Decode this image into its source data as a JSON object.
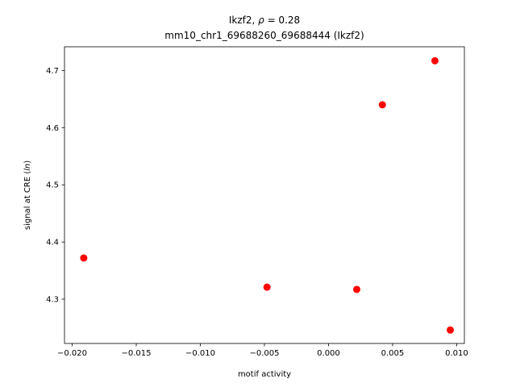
{
  "chart_data": {
    "type": "scatter",
    "title_line1_prefix": "Ikzf2, ",
    "title_line1_rho": "ρ",
    "title_line1_suffix": " = 0.28",
    "title_line2": "mm10_chr1_69688260_69688444 (Ikzf2)",
    "xlabel": "motif activity",
    "ylabel_prefix": "signal at CRE (",
    "ylabel_italic": "ln",
    "ylabel_suffix": ")",
    "xlim": [
      -0.0206,
      0.0106
    ],
    "ylim": [
      4.2225,
      4.7415
    ],
    "xticks": [
      -0.02,
      -0.015,
      -0.01,
      -0.005,
      0.0,
      0.005,
      0.01
    ],
    "xtick_labels": [
      "−0.020",
      "−0.015",
      "−0.010",
      "−0.005",
      "0.000",
      "0.005",
      "0.010"
    ],
    "yticks": [
      4.3,
      4.4,
      4.5,
      4.6,
      4.7
    ],
    "ytick_labels": [
      "4.3",
      "4.4",
      "4.5",
      "4.6",
      "4.7"
    ],
    "marker_color": "#ff0000",
    "points": [
      {
        "x": -0.0191,
        "y": 4.372
      },
      {
        "x": -0.0048,
        "y": 4.321
      },
      {
        "x": 0.0022,
        "y": 4.317
      },
      {
        "x": 0.0042,
        "y": 4.64
      },
      {
        "x": 0.0083,
        "y": 4.717
      },
      {
        "x": 0.0095,
        "y": 4.246
      }
    ]
  }
}
